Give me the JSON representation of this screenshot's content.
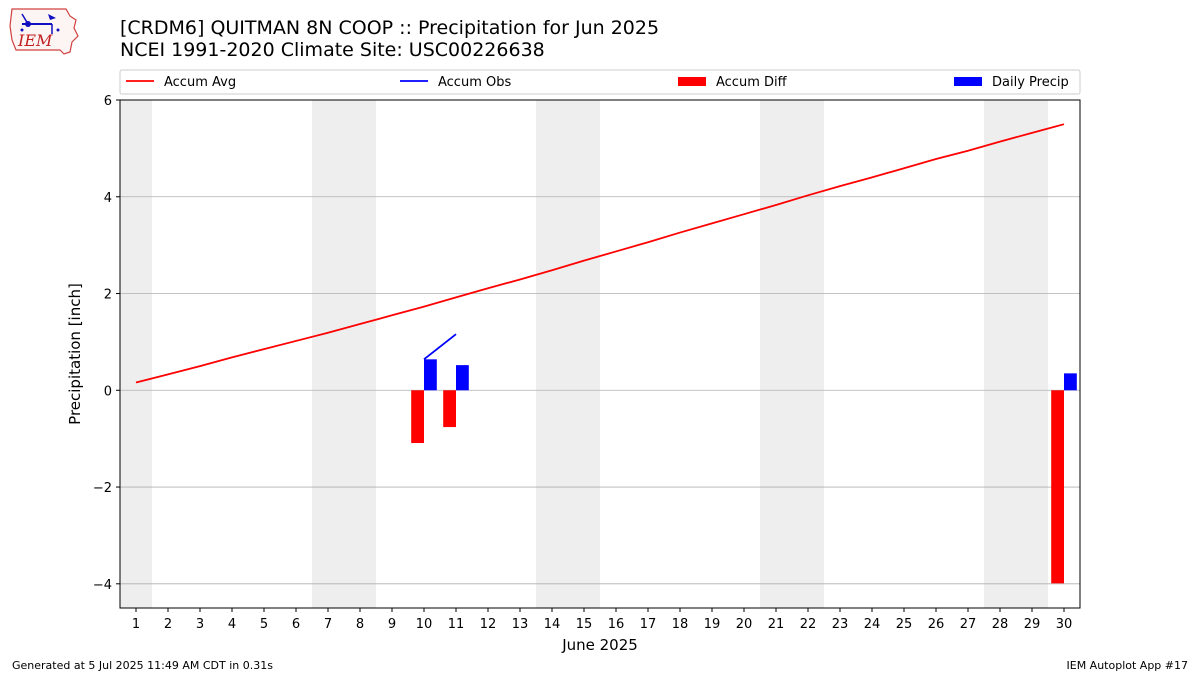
{
  "header": {
    "title_line1": "[CRDM6] QUITMAN 8N COOP :: Precipitation for Jun 2025",
    "title_line2": "NCEI 1991-2020 Climate Site: USC00226638",
    "logo_text": "IEM"
  },
  "footer": {
    "generated": "Generated at 5 Jul 2025 11:49 AM CDT in 0.31s",
    "app": "IEM Autoplot App #17"
  },
  "colors": {
    "avg": "#ff0000",
    "obs": "#0000ff",
    "diff": "#ff0000",
    "daily": "#0000ff",
    "weekend_shade": "#eeeeee",
    "grid": "#b0b0b0"
  },
  "chart_data": {
    "type": "bar",
    "xlabel": "June 2025",
    "ylabel": "Precipitation [inch]",
    "xlim": [
      0.5,
      30.5
    ],
    "ylim": [
      -4.5,
      6
    ],
    "yticks": [
      -4,
      -2,
      0,
      2,
      4,
      6
    ],
    "ytick_labels": [
      "−4",
      "−2",
      "0",
      "2",
      "4",
      "6"
    ],
    "days": [
      1,
      2,
      3,
      4,
      5,
      6,
      7,
      8,
      9,
      10,
      11,
      12,
      13,
      14,
      15,
      16,
      17,
      18,
      19,
      20,
      21,
      22,
      23,
      24,
      25,
      26,
      27,
      28,
      29,
      30
    ],
    "shaded_days": [
      1,
      7,
      8,
      14,
      15,
      21,
      22,
      28,
      29
    ],
    "grid": "y",
    "legend": {
      "position": "top",
      "entries": [
        {
          "label": "Accum Avg",
          "kind": "line",
          "color_key": "avg"
        },
        {
          "label": "Accum Obs",
          "kind": "line",
          "color_key": "obs"
        },
        {
          "label": "Accum Diff",
          "kind": "bar",
          "color_key": "diff"
        },
        {
          "label": "Daily Precip",
          "kind": "bar",
          "color_key": "daily"
        }
      ]
    },
    "series": [
      {
        "name": "Accum Avg",
        "type": "line",
        "x": [
          1,
          2,
          3,
          4,
          5,
          6,
          7,
          8,
          9,
          10,
          11,
          12,
          13,
          14,
          15,
          16,
          17,
          18,
          19,
          20,
          21,
          22,
          23,
          24,
          25,
          26,
          27,
          28,
          29,
          30
        ],
        "values": [
          0.16,
          0.33,
          0.5,
          0.68,
          0.85,
          1.02,
          1.19,
          1.37,
          1.55,
          1.73,
          1.92,
          2.11,
          2.29,
          2.48,
          2.68,
          2.87,
          3.06,
          3.26,
          3.45,
          3.64,
          3.83,
          4.03,
          4.22,
          4.4,
          4.59,
          4.78,
          4.95,
          5.14,
          5.32,
          5.5
        ]
      },
      {
        "name": "Accum Obs",
        "type": "line",
        "x": [
          10,
          11
        ],
        "values": [
          0.64,
          1.16
        ]
      },
      {
        "name": "Accum Diff",
        "type": "bar",
        "x": [
          10,
          11,
          30
        ],
        "values": [
          -1.09,
          -0.76,
          -3.99
        ]
      },
      {
        "name": "Daily Precip",
        "type": "bar",
        "x": [
          10,
          11,
          30
        ],
        "values": [
          0.64,
          0.52,
          0.35
        ]
      }
    ]
  }
}
